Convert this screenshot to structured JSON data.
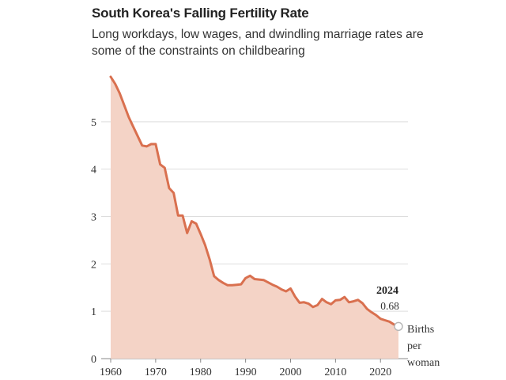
{
  "chart_data": {
    "type": "area",
    "title": "South Korea's Falling Fertility Rate",
    "subtitle": "Long workdays, low wages, and dwindling marriage rates are some of the constraints on childbearing",
    "xlabel": "",
    "ylabel": "",
    "unit_label": [
      "Births",
      "per",
      "woman"
    ],
    "x_ticks": [
      1960,
      1970,
      1980,
      1990,
      2000,
      2010,
      2020
    ],
    "y_ticks": [
      0,
      1,
      2,
      3,
      4,
      5
    ],
    "xlim": [
      1960,
      2024
    ],
    "ylim": [
      0,
      6
    ],
    "grid": "horizontal",
    "colors": {
      "line": "#d9704f",
      "fill": "#f4d3c6",
      "grid": "#dddddd"
    },
    "annotation": {
      "year": "2024",
      "value": "0.68"
    },
    "series": [
      {
        "x": [
          1960,
          1961,
          1962,
          1963,
          1964,
          1965,
          1966,
          1967,
          1968,
          1969,
          1970,
          1971,
          1972,
          1973,
          1974,
          1975,
          1976,
          1977,
          1978,
          1979,
          1980,
          1981,
          1982,
          1983,
          1984,
          1985,
          1986,
          1987,
          1988,
          1989,
          1990,
          1991,
          1992,
          1993,
          1994,
          1995,
          1996,
          1997,
          1998,
          1999,
          2000,
          2001,
          2002,
          2003,
          2004,
          2005,
          2006,
          2007,
          2008,
          2009,
          2010,
          2011,
          2012,
          2013,
          2014,
          2015,
          2016,
          2017,
          2018,
          2019,
          2020,
          2021,
          2022,
          2023,
          2024
        ],
        "y": [
          5.95,
          5.8,
          5.6,
          5.35,
          5.1,
          4.9,
          4.7,
          4.5,
          4.48,
          4.53,
          4.53,
          4.1,
          4.03,
          3.6,
          3.5,
          3.02,
          3.02,
          2.65,
          2.9,
          2.85,
          2.63,
          2.4,
          2.1,
          1.74,
          1.66,
          1.6,
          1.55,
          1.55,
          1.56,
          1.57,
          1.7,
          1.75,
          1.68,
          1.67,
          1.66,
          1.61,
          1.56,
          1.52,
          1.46,
          1.42,
          1.48,
          1.31,
          1.18,
          1.19,
          1.16,
          1.09,
          1.13,
          1.26,
          1.19,
          1.15,
          1.23,
          1.24,
          1.3,
          1.19,
          1.21,
          1.24,
          1.17,
          1.05,
          0.98,
          0.92,
          0.84,
          0.81,
          0.78,
          0.72,
          0.68
        ]
      }
    ]
  }
}
